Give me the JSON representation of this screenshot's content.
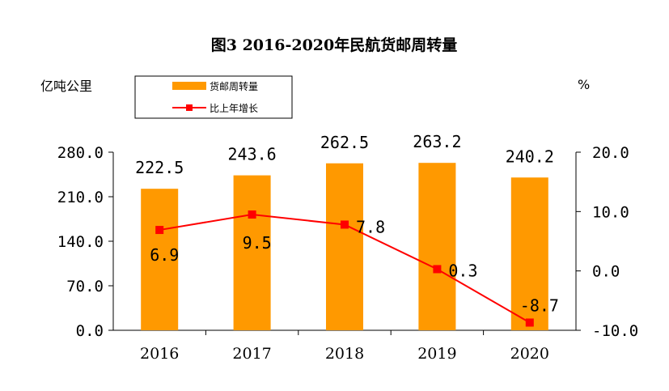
{
  "chart_data": {
    "type": "bar+line",
    "title": "图3 2016-2020年民航货邮周转量",
    "y_left_unit": "亿吨公里",
    "y_right_unit": "%",
    "categories": [
      "2016",
      "2017",
      "2018",
      "2019",
      "2020"
    ],
    "y_left_ticks": [
      "280.0",
      "210.0",
      "140.0",
      "70.0",
      "0.0"
    ],
    "y_right_ticks": [
      "20.0",
      "10.0",
      "0.0",
      "-10.0"
    ],
    "y_left_range": [
      0,
      280
    ],
    "y_right_range": [
      -10,
      20
    ],
    "legend": {
      "bar_label": "货邮周转量",
      "line_label": "比上年增长"
    },
    "series": [
      {
        "name": "货邮周转量",
        "type": "bar",
        "axis": "left",
        "values": [
          222.5,
          243.6,
          262.5,
          263.2,
          240.2
        ],
        "labels": [
          "222.5",
          "243.6",
          "262.5",
          "263.2",
          "240.2"
        ]
      },
      {
        "name": "比上年增长",
        "type": "line",
        "axis": "right",
        "values": [
          6.9,
          9.5,
          7.8,
          0.3,
          -8.7
        ],
        "labels": [
          "6.9",
          "9.5",
          "7.8",
          "0.3",
          "-8.7"
        ]
      }
    ],
    "colors": {
      "bar": "#FF9900",
      "line": "#FF0000",
      "marker": "#FF0000",
      "axis": "#000000"
    }
  }
}
